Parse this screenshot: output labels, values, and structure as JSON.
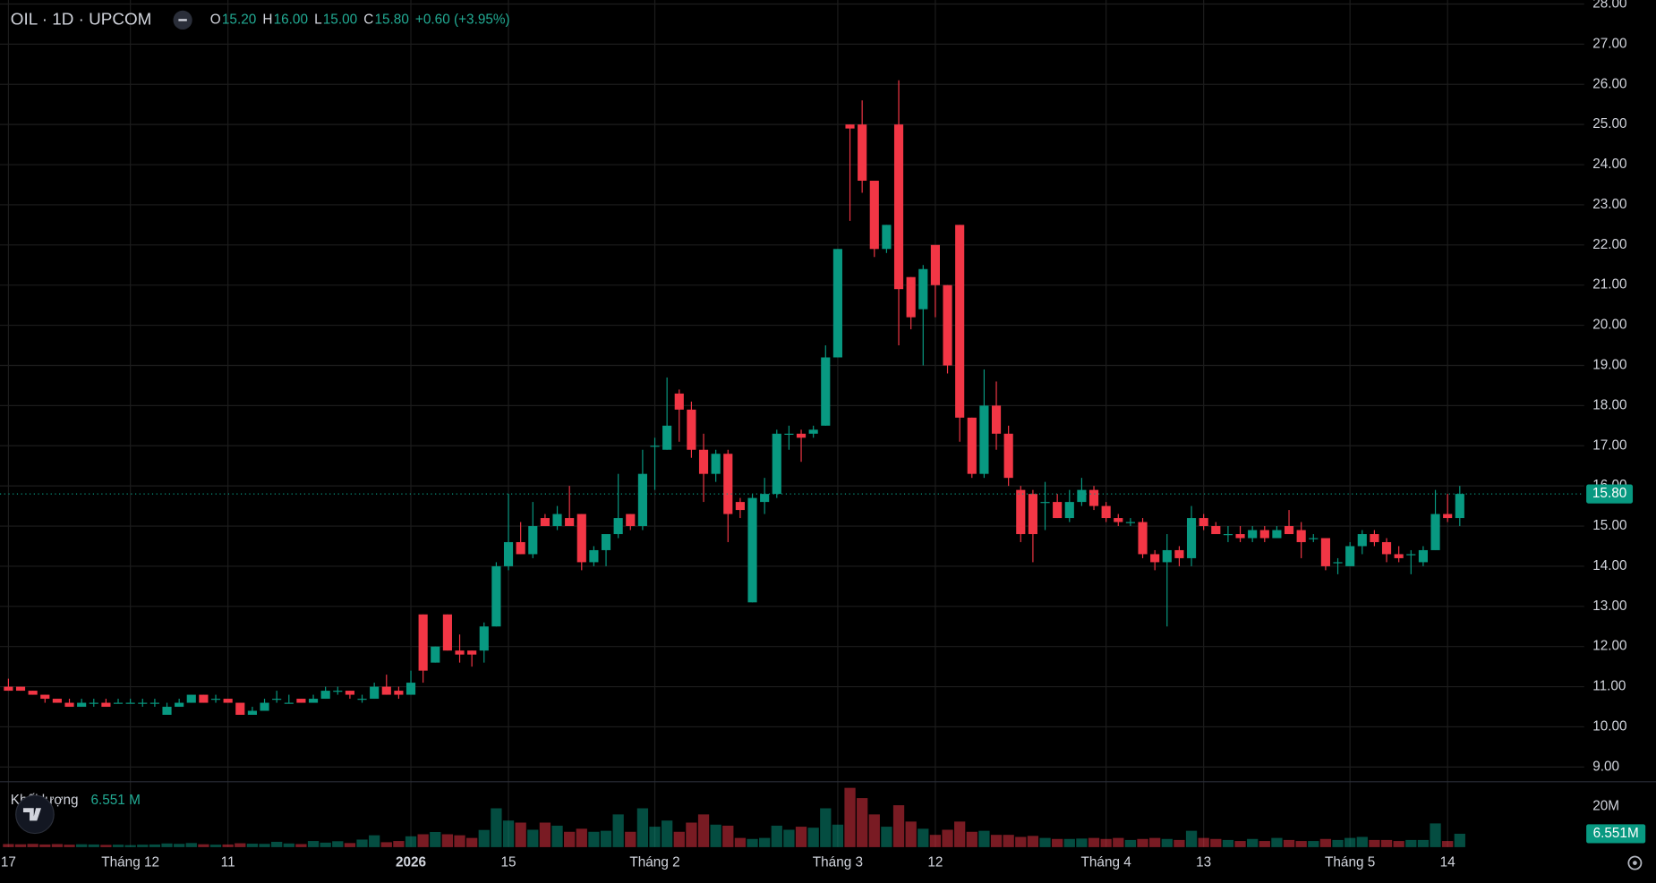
{
  "chart_data": {
    "type": "candlestick",
    "symbol_title": "OIL · 1D · UPCOM",
    "legend": [
      {
        "key": "O",
        "value": "15.20"
      },
      {
        "key": "H",
        "value": "16.00"
      },
      {
        "key": "L",
        "value": "15.00"
      },
      {
        "key": "C",
        "value": "15.80"
      }
    ],
    "change": "+0.60 (+3.95%)",
    "volume_title": "Khối lượng",
    "volume_value": "6.551 M",
    "last_price_label": "15.80",
    "last_volume_label": "6.551M",
    "up_color": "#089981",
    "down_color": "#f23645",
    "grid": true,
    "xlim": [
      -0.69,
      129.2
    ],
    "xticks": [
      {
        "value": 0,
        "label": "17"
      },
      {
        "value": 10,
        "label": "Tháng 12"
      },
      {
        "value": 18,
        "label": "11"
      },
      {
        "value": 33,
        "label": "2026"
      },
      {
        "value": 41,
        "label": "15"
      },
      {
        "value": 53,
        "label": "Tháng 2"
      },
      {
        "value": 68,
        "label": "Tháng 3"
      },
      {
        "value": 76,
        "label": "12"
      },
      {
        "value": 90,
        "label": "Tháng 4"
      },
      {
        "value": 98,
        "label": "13"
      },
      {
        "value": 110,
        "label": "Tháng 5"
      },
      {
        "value": 118,
        "label": "14"
      }
    ],
    "ylim": [
      8.66,
      28.1
    ],
    "yticks": [
      {
        "value": 9,
        "label": "9.00"
      },
      {
        "value": 10,
        "label": "10.00"
      },
      {
        "value": 11,
        "label": "11.00"
      },
      {
        "value": 12,
        "label": "12.00"
      },
      {
        "value": 13,
        "label": "13.00"
      },
      {
        "value": 14,
        "label": "14.00"
      },
      {
        "value": 15,
        "label": "15.00"
      },
      {
        "value": 16,
        "label": "16.00"
      },
      {
        "value": 17,
        "label": "17.00"
      },
      {
        "value": 18,
        "label": "18.00"
      },
      {
        "value": 19,
        "label": "19.00"
      },
      {
        "value": 20,
        "label": "20.00"
      },
      {
        "value": 21,
        "label": "21.00"
      },
      {
        "value": 22,
        "label": "22.00"
      },
      {
        "value": 23,
        "label": "23.00"
      },
      {
        "value": 24,
        "label": "24.00"
      },
      {
        "value": 25,
        "label": "25.00"
      },
      {
        "value": 26,
        "label": "26.00"
      },
      {
        "value": 27,
        "label": "27.00"
      },
      {
        "value": 28,
        "label": "28.00"
      }
    ],
    "volume_ylim": [
      0,
      32
    ],
    "volume_yticks": [
      {
        "value": 20,
        "label": "20M"
      }
    ],
    "open": [
      11.0,
      11.0,
      10.9,
      10.8,
      10.7,
      10.6,
      10.5,
      10.6,
      10.6,
      10.6,
      10.6,
      10.6,
      10.6,
      10.3,
      10.5,
      10.6,
      10.8,
      10.7,
      10.7,
      10.6,
      10.3,
      10.4,
      10.7,
      10.6,
      10.7,
      10.6,
      10.7,
      10.9,
      10.9,
      10.7,
      10.7,
      11.0,
      10.9,
      10.8,
      12.8,
      11.6,
      12.8,
      11.9,
      11.9,
      11.9,
      12.5,
      14.0,
      14.6,
      14.3,
      15.2,
      15.0,
      15.2,
      15.3,
      14.1,
      14.4,
      14.8,
      15.3,
      15.0,
      17.0,
      16.9,
      18.3,
      17.9,
      16.9,
      16.3,
      16.8,
      15.6,
      13.1,
      15.6,
      15.8,
      17.3,
      17.3,
      17.3,
      17.5,
      19.2,
      25.0,
      25.0,
      23.6,
      21.9,
      25.0,
      21.2,
      20.4,
      22.0,
      21.0,
      22.5,
      17.7,
      16.3,
      18.0,
      17.3,
      15.9,
      15.8,
      15.6,
      15.6,
      15.2,
      15.6,
      15.9,
      15.5,
      15.2,
      15.1,
      15.1,
      14.3,
      14.1,
      14.4,
      14.2,
      15.2,
      15.0,
      14.8,
      14.8,
      14.7,
      14.9,
      14.7,
      15.0,
      14.9,
      14.7,
      14.7,
      14.1,
      14.0,
      14.5,
      14.8,
      14.6,
      14.3,
      14.3,
      14.1,
      14.4,
      15.3,
      15.2
    ],
    "high": [
      11.2,
      11.0,
      10.9,
      10.8,
      10.7,
      10.7,
      10.7,
      10.7,
      10.7,
      10.7,
      10.7,
      10.7,
      10.7,
      10.6,
      10.7,
      10.8,
      10.8,
      10.8,
      10.7,
      10.6,
      10.5,
      10.7,
      10.9,
      10.8,
      10.7,
      10.8,
      11.0,
      11.0,
      10.9,
      10.8,
      11.1,
      11.3,
      11.0,
      11.4,
      12.8,
      12.0,
      12.8,
      12.3,
      11.9,
      12.6,
      14.1,
      15.8,
      15.1,
      15.6,
      15.3,
      15.5,
      16.0,
      15.3,
      14.5,
      14.8,
      16.3,
      15.3,
      16.9,
      17.2,
      18.7,
      18.4,
      18.1,
      17.3,
      16.9,
      16.9,
      15.7,
      15.8,
      16.2,
      17.4,
      17.5,
      17.4,
      17.5,
      19.5,
      21.9,
      25.0,
      25.6,
      23.6,
      22.5,
      26.1,
      21.2,
      21.5,
      22.0,
      21.0,
      22.5,
      17.7,
      18.9,
      18.6,
      17.5,
      16.0,
      15.9,
      16.1,
      15.8,
      15.9,
      16.2,
      16.0,
      15.6,
      15.3,
      15.2,
      15.2,
      14.4,
      14.8,
      14.5,
      15.5,
      15.3,
      15.1,
      15.0,
      15.0,
      15.0,
      15.0,
      15.0,
      15.4,
      15.1,
      14.8,
      14.7,
      14.2,
      14.6,
      14.9,
      14.9,
      14.7,
      14.5,
      14.4,
      14.5,
      15.9,
      15.8,
      16.0
    ],
    "low": [
      10.9,
      10.9,
      10.8,
      10.6,
      10.6,
      10.5,
      10.5,
      10.5,
      10.5,
      10.6,
      10.6,
      10.5,
      10.5,
      10.3,
      10.5,
      10.6,
      10.6,
      10.6,
      10.6,
      10.3,
      10.3,
      10.4,
      10.6,
      10.6,
      10.6,
      10.6,
      10.7,
      10.8,
      10.7,
      10.6,
      10.7,
      10.8,
      10.7,
      10.8,
      11.1,
      11.6,
      11.9,
      11.6,
      11.5,
      11.6,
      12.5,
      13.9,
      14.3,
      14.2,
      15.0,
      14.9,
      15.0,
      13.9,
      14.0,
      14.0,
      14.7,
      14.9,
      14.9,
      15.9,
      16.9,
      17.1,
      16.7,
      15.6,
      16.1,
      14.6,
      15.2,
      13.1,
      15.3,
      15.7,
      16.9,
      16.6,
      17.2,
      17.5,
      19.2,
      22.6,
      23.3,
      21.7,
      21.8,
      19.5,
      19.9,
      19.0,
      20.2,
      18.8,
      17.1,
      16.2,
      16.2,
      16.9,
      16.0,
      14.6,
      14.1,
      14.9,
      15.2,
      15.1,
      15.5,
      15.4,
      15.1,
      15.0,
      15.0,
      14.2,
      13.9,
      12.5,
      14.0,
      14.0,
      14.9,
      14.8,
      14.6,
      14.6,
      14.6,
      14.6,
      14.7,
      14.8,
      14.2,
      14.6,
      13.9,
      13.8,
      14.0,
      14.3,
      14.5,
      14.1,
      14.1,
      13.8,
      14.0,
      14.4,
      15.1,
      15.0
    ],
    "close": [
      10.9,
      10.9,
      10.8,
      10.7,
      10.6,
      10.5,
      10.6,
      10.6,
      10.5,
      10.6,
      10.6,
      10.6,
      10.6,
      10.5,
      10.6,
      10.8,
      10.6,
      10.7,
      10.6,
      10.3,
      10.4,
      10.6,
      10.7,
      10.6,
      10.6,
      10.7,
      10.9,
      10.9,
      10.8,
      10.7,
      11.0,
      10.8,
      10.8,
      11.1,
      11.4,
      12.0,
      11.9,
      11.8,
      11.8,
      12.5,
      14.0,
      14.6,
      14.3,
      15.0,
      15.0,
      15.3,
      15.0,
      14.1,
      14.4,
      14.8,
      15.2,
      15.0,
      16.3,
      17.0,
      17.5,
      17.9,
      16.9,
      16.3,
      16.8,
      15.3,
      15.4,
      15.7,
      15.8,
      17.3,
      17.3,
      17.2,
      17.4,
      19.2,
      21.9,
      24.9,
      23.6,
      21.9,
      22.5,
      20.9,
      20.2,
      21.4,
      21.0,
      19.0,
      17.7,
      16.3,
      18.0,
      17.3,
      16.2,
      14.8,
      14.8,
      15.6,
      15.2,
      15.6,
      15.9,
      15.5,
      15.2,
      15.1,
      15.1,
      14.3,
      14.1,
      14.4,
      14.2,
      15.2,
      15.0,
      14.8,
      14.8,
      14.7,
      14.9,
      14.7,
      14.9,
      14.8,
      14.6,
      14.7,
      14.0,
      14.1,
      14.5,
      14.8,
      14.6,
      14.3,
      14.2,
      14.3,
      14.4,
      15.3,
      15.2,
      15.8
    ],
    "volume": [
      1.5,
      1.4,
      1.6,
      1.3,
      1.5,
      1.2,
      1.4,
      1.3,
      1.1,
      1.2,
      1.0,
      1.2,
      1.3,
      1.8,
      1.6,
      2.0,
      1.4,
      1.2,
      1.3,
      1.9,
      1.7,
      1.6,
      2.6,
      1.8,
      1.5,
      3.0,
      2.2,
      2.9,
      2.0,
      3.7,
      5.8,
      2.4,
      3.0,
      5.3,
      6.3,
      7.4,
      6.3,
      5.8,
      4.5,
      8.4,
      19.0,
      13.0,
      12.0,
      8.5,
      12.0,
      10.5,
      7.5,
      9.0,
      7.5,
      8.0,
      16.0,
      7.5,
      19.0,
      10.0,
      13.0,
      7.5,
      12.0,
      16.0,
      11.0,
      10.5,
      4.5,
      4.0,
      4.5,
      10.5,
      8.5,
      10.0,
      9.5,
      19.0,
      11.0,
      29.0,
      24.0,
      16.0,
      10.0,
      20.5,
      12.5,
      9.0,
      6.0,
      8.5,
      12.5,
      7.5,
      8.0,
      6.0,
      6.0,
      5.0,
      5.5,
      4.5,
      4.0,
      4.0,
      4.2,
      4.5,
      4.0,
      4.5,
      3.5,
      4.0,
      4.5,
      4.0,
      3.5,
      8.0,
      4.5,
      4.0,
      3.5,
      3.0,
      4.0,
      3.0,
      4.5,
      3.5,
      3.0,
      3.0,
      4.0,
      3.5,
      4.5,
      5.0,
      3.5,
      3.5,
      3.0,
      3.5,
      3.5,
      11.6,
      3.0,
      6.551
    ]
  }
}
